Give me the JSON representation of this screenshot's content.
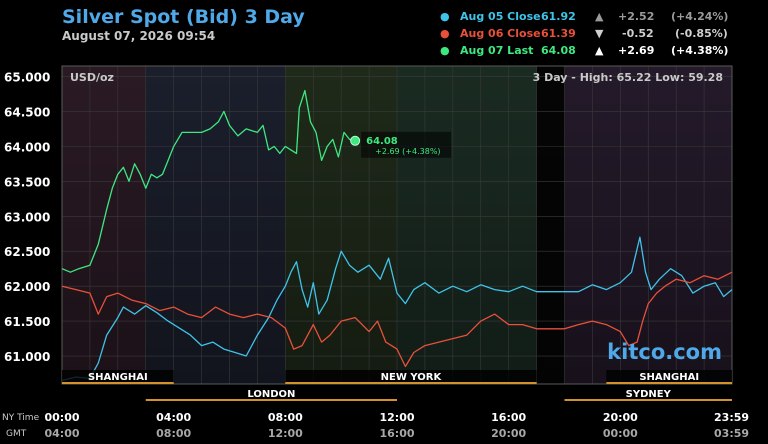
{
  "header": {
    "title": "Silver Spot (Bid) 3 Day",
    "timestamp": "August 07, 2026 09:54"
  },
  "legend": [
    {
      "label": "Aug 05 Close",
      "value": "61.92",
      "arrow": "▲",
      "change": "+2.52",
      "pct": "(+4.24%)",
      "color": "#3fc3e8",
      "arrow_color": "#9a9a9a",
      "text_color": "#9a9a9a"
    },
    {
      "label": "Aug 06 Close",
      "value": "61.39",
      "arrow": "▼",
      "change": "-0.52",
      "pct": "(-0.85%)",
      "color": "#e8503a",
      "arrow_color": "#cfcfcf",
      "text_color": "#cfcfcf"
    },
    {
      "label": "Aug 07 Last",
      "value": "64.08",
      "arrow": "▲",
      "change": "+2.69",
      "pct": "(+4.38%)",
      "color": "#3ee880",
      "arrow_color": "#ffffff",
      "text_color": "#ffffff"
    }
  ],
  "plot": {
    "unit_label": "USD/oz",
    "stats_label": "3 Day - High: 65.22  Low: 59.28",
    "watermark": "kitco.com",
    "last_value_label": "64.08",
    "last_change_label": "+2.69 (+4.38%)"
  },
  "sessions": [
    {
      "name": "SHANGHAI",
      "start": 0,
      "end": 4,
      "row": 1
    },
    {
      "name": "NEW YORK",
      "start": 8,
      "end": 17,
      "row": 1
    },
    {
      "name": "SHANGHAI",
      "start": 19.5,
      "end": 24,
      "row": 1
    },
    {
      "name": "LONDON",
      "start": 3,
      "end": 12,
      "row": 2
    },
    {
      "name": "SYDNEY",
      "start": 18,
      "end": 24,
      "row": 2
    }
  ],
  "time_axis": {
    "row1_title": "NY Time",
    "row2_title": "GMT",
    "ny_labels": [
      "00:00",
      "04:00",
      "08:00",
      "12:00",
      "16:00",
      "20:00",
      "23:59"
    ],
    "gmt_labels": [
      "04:00",
      "08:00",
      "12:00",
      "16:00",
      "20:00",
      "00:00",
      "03:59"
    ]
  },
  "colors": {
    "aug05": "#3fc3e8",
    "aug06": "#e8503a",
    "aug07": "#3ee880",
    "session_bar": "#d4922a",
    "title": "#4fa8e8"
  },
  "chart_data": {
    "type": "line",
    "x_unit": "hours (NY time)",
    "xlim": [
      0,
      24
    ],
    "ylim": [
      60.6,
      65.15
    ],
    "yticks": [
      61.0,
      61.5,
      62.0,
      62.5,
      63.0,
      63.5,
      64.0,
      64.5,
      65.0
    ],
    "ytick_labels": [
      "61.000",
      "61.500",
      "62.000",
      "62.500",
      "63.000",
      "63.500",
      "64.000",
      "64.500",
      "65.000"
    ],
    "grid": true,
    "series": [
      {
        "name": "Aug 05 Close",
        "x": [
          0,
          0.5,
          1,
          1.3,
          1.6,
          2,
          2.2,
          2.6,
          3,
          3.4,
          3.8,
          4.2,
          4.6,
          5,
          5.4,
          5.8,
          6.2,
          6.6,
          7,
          7.4,
          7.7,
          8,
          8.2,
          8.4,
          8.6,
          8.8,
          9,
          9.2,
          9.5,
          9.8,
          10,
          10.3,
          10.6,
          11,
          11.4,
          11.7,
          12,
          12.3,
          12.6,
          13,
          13.5,
          14,
          14.5,
          15,
          15.5,
          16,
          16.5,
          17,
          17.5,
          18,
          18.5,
          19,
          19.5,
          20,
          20.4,
          20.7,
          20.9,
          21.1,
          21.4,
          21.8,
          22.2,
          22.6,
          23,
          23.4,
          23.7,
          24
        ],
        "y": [
          60.65,
          60.7,
          60.68,
          60.9,
          61.3,
          61.55,
          61.7,
          61.6,
          61.72,
          61.62,
          61.5,
          61.4,
          61.3,
          61.15,
          61.2,
          61.1,
          61.05,
          61.0,
          61.3,
          61.55,
          61.8,
          62.0,
          62.2,
          62.35,
          61.95,
          61.7,
          62.05,
          61.6,
          61.8,
          62.25,
          62.5,
          62.3,
          62.2,
          62.3,
          62.1,
          62.4,
          61.9,
          61.75,
          61.95,
          62.05,
          61.9,
          62.0,
          61.92,
          62.02,
          61.95,
          61.92,
          62.0,
          61.92,
          61.92,
          61.92,
          61.92,
          62.02,
          61.95,
          62.05,
          62.2,
          62.7,
          62.2,
          61.95,
          62.1,
          62.25,
          62.15,
          61.9,
          62.0,
          62.05,
          61.85,
          61.95
        ]
      },
      {
        "name": "Aug 06 Close",
        "x": [
          0,
          0.5,
          1,
          1.3,
          1.6,
          2,
          2.5,
          3,
          3.5,
          4,
          4.5,
          5,
          5.5,
          6,
          6.5,
          7,
          7.5,
          8,
          8.3,
          8.6,
          9,
          9.3,
          9.6,
          10,
          10.5,
          11,
          11.3,
          11.6,
          12,
          12.3,
          12.6,
          13,
          13.5,
          14,
          14.5,
          15,
          15.5,
          16,
          16.5,
          17,
          17.5,
          18,
          18.5,
          19,
          19.5,
          20,
          20.3,
          20.6,
          20.8,
          21,
          21.3,
          21.6,
          22,
          22.5,
          23,
          23.5,
          24
        ],
        "y": [
          62.0,
          61.95,
          61.9,
          61.6,
          61.85,
          61.9,
          61.8,
          61.75,
          61.65,
          61.7,
          61.6,
          61.55,
          61.7,
          61.6,
          61.55,
          61.6,
          61.55,
          61.4,
          61.1,
          61.15,
          61.45,
          61.2,
          61.3,
          61.5,
          61.55,
          61.35,
          61.5,
          61.2,
          61.1,
          60.85,
          61.05,
          61.15,
          61.2,
          61.25,
          61.3,
          61.5,
          61.6,
          61.45,
          61.45,
          61.39,
          61.39,
          61.39,
          61.45,
          61.5,
          61.45,
          61.35,
          61.15,
          61.2,
          61.5,
          61.75,
          61.9,
          62.0,
          62.1,
          62.05,
          62.15,
          62.1,
          62.2
        ]
      },
      {
        "name": "Aug 07 Last",
        "x": [
          0,
          0.3,
          0.6,
          1,
          1.3,
          1.6,
          1.8,
          2,
          2.2,
          2.4,
          2.6,
          2.8,
          3,
          3.2,
          3.4,
          3.6,
          3.8,
          4,
          4.3,
          4.6,
          5,
          5.3,
          5.6,
          5.8,
          6,
          6.3,
          6.6,
          7,
          7.2,
          7.4,
          7.6,
          7.8,
          8,
          8.2,
          8.4,
          8.5,
          8.7,
          8.9,
          9.1,
          9.3,
          9.5,
          9.7,
          9.9,
          10.1,
          10.3,
          10.5
        ],
        "y": [
          62.25,
          62.2,
          62.25,
          62.3,
          62.6,
          63.1,
          63.4,
          63.6,
          63.7,
          63.5,
          63.75,
          63.6,
          63.4,
          63.6,
          63.55,
          63.6,
          63.8,
          64.0,
          64.2,
          64.2,
          64.2,
          64.25,
          64.35,
          64.5,
          64.3,
          64.15,
          64.25,
          64.2,
          64.3,
          63.95,
          64.0,
          63.9,
          64.0,
          63.95,
          63.9,
          64.55,
          64.8,
          64.35,
          64.2,
          63.8,
          64.0,
          64.1,
          63.85,
          64.2,
          64.1,
          64.08
        ]
      }
    ]
  }
}
